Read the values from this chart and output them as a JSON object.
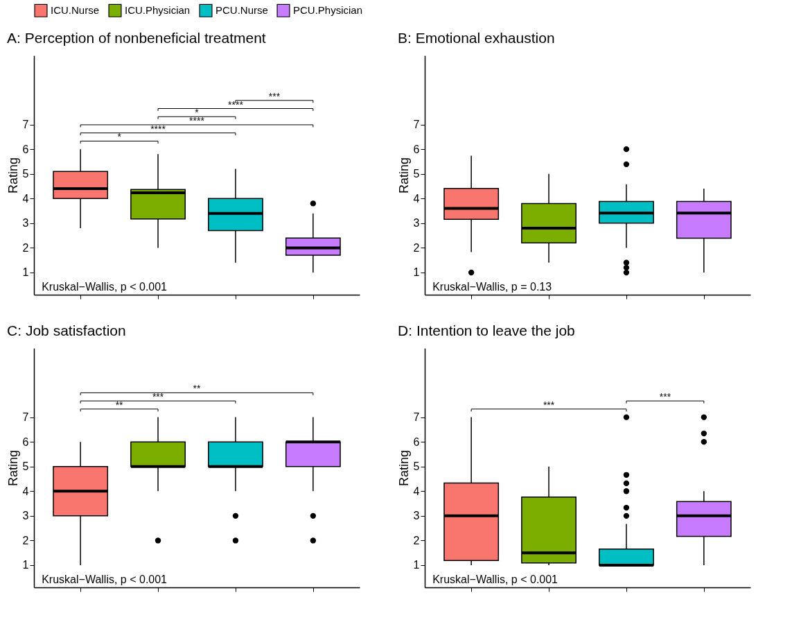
{
  "chart_data": [
    {
      "type": "box",
      "title": "A: Perception of nonbeneficial treatment",
      "ylabel": "Rating",
      "categories": [
        null,
        null,
        null,
        null
      ],
      "ylim": [
        0.1,
        9.8
      ],
      "yticks": [
        1,
        2,
        3,
        4,
        5,
        6,
        7
      ],
      "tick_labels": "y",
      "legend": "top",
      "series": [
        {
          "name": "ICU.Nurse",
          "color": "#f8766d",
          "boxes": [
            {
              "low": 2.8,
              "q1": 4.0,
              "median": 4.4,
              "q3": 5.1,
              "high": 6.0
            },
            null,
            null,
            null
          ]
        },
        {
          "name": "ICU.Physician",
          "color": "#7cae00",
          "boxes": [
            null,
            {
              "low": 2.0,
              "q1": 3.17,
              "median": 4.23,
              "q3": 4.37,
              "high": 5.8
            },
            null,
            null
          ]
        },
        {
          "name": "PCU.Nurse",
          "color": "#00bfc4",
          "boxes": [
            null,
            null,
            {
              "low": 1.4,
              "q1": 2.7,
              "median": 3.4,
              "q3": 4.0,
              "high": 5.2
            },
            null
          ]
        },
        {
          "name": "PCU.Physician",
          "color": "#c77cff",
          "boxes": [
            null,
            null,
            null,
            {
              "low": 1.0,
              "q1": 1.7,
              "median": 2.0,
              "q3": 2.4,
              "high": 3.4,
              "outliers": [
                3.8
              ]
            }
          ]
        }
      ],
      "annotations": [
        "*",
        "****",
        "****",
        "*",
        "****",
        "***",
        "Kruskal−Wallis, p < 0.001"
      ]
    },
    {
      "type": "box",
      "title": "B: Emotional exhaustion",
      "ylabel": "Rating",
      "categories": [
        null,
        null,
        null,
        null
      ],
      "ylim": [
        0.1,
        9.8
      ],
      "yticks": [
        1,
        2,
        3,
        4,
        5,
        6,
        7
      ],
      "tick_labels": "y",
      "legend": "top",
      "series": [
        {
          "name": "ICU.Nurse",
          "color": "#f8766d",
          "boxes": [
            {
              "low": 1.83,
              "q1": 3.16,
              "median": 3.6,
              "q3": 4.41,
              "high": 5.74,
              "outliers": [
                1.0
              ]
            },
            null,
            null,
            null
          ]
        },
        {
          "name": "ICU.Physician",
          "color": "#7cae00",
          "boxes": [
            null,
            {
              "low": 1.4,
              "q1": 2.2,
              "median": 2.8,
              "q3": 3.8,
              "high": 5.0
            },
            null,
            null
          ]
        },
        {
          "name": "PCU.Nurse",
          "color": "#00bfc4",
          "boxes": [
            null,
            null,
            {
              "low": 2.0,
              "q1": 3.0,
              "median": 3.41,
              "q3": 3.88,
              "high": 4.58,
              "outliers": [
                6.0,
                5.39,
                1.4,
                1.2,
                1.0
              ]
            },
            null
          ]
        },
        {
          "name": "PCU.Physician",
          "color": "#c77cff",
          "boxes": [
            null,
            null,
            null,
            {
              "low": 1.0,
              "q1": 2.39,
              "median": 3.41,
              "q3": 3.88,
              "high": 4.4
            }
          ]
        }
      ],
      "annotations": [
        "Kruskal−Wallis, p = 0.13"
      ]
    },
    {
      "type": "box",
      "title": "C: Job satisfaction",
      "ylabel": "Rating",
      "categories": [
        null,
        null,
        null,
        null
      ],
      "ylim": [
        0.1,
        9.8
      ],
      "yticks": [
        1,
        2,
        3,
        4,
        5,
        6,
        7
      ],
      "tick_labels": "y",
      "legend": "top",
      "series": [
        {
          "name": "ICU.Nurse",
          "color": "#f8766d",
          "boxes": [
            {
              "low": 1,
              "q1": 3,
              "median": 4,
              "q3": 5,
              "high": 6
            },
            null,
            null,
            null
          ]
        },
        {
          "name": "ICU.Physician",
          "color": "#7cae00",
          "boxes": [
            null,
            {
              "low": 4,
              "q1": 5,
              "median": 5,
              "q3": 6,
              "high": 7,
              "outliers": [
                2
              ]
            },
            null,
            null
          ]
        },
        {
          "name": "PCU.Nurse",
          "color": "#00bfc4",
          "boxes": [
            null,
            null,
            {
              "low": 4,
              "q1": 5,
              "median": 5,
              "q3": 6,
              "high": 7,
              "outliers": [
                3,
                2
              ]
            },
            null
          ]
        },
        {
          "name": "PCU.Physician",
          "color": "#c77cff",
          "boxes": [
            null,
            null,
            null,
            {
              "low": 4,
              "q1": 5,
              "median": 6,
              "q3": 6,
              "high": 7,
              "outliers": [
                3,
                2
              ]
            }
          ]
        }
      ],
      "annotations": [
        "**",
        "***",
        "**",
        "Kruskal−Wallis, p < 0.001"
      ]
    },
    {
      "type": "box",
      "title": "D: Intention to leave the job",
      "ylabel": "Rating",
      "categories": [
        null,
        null,
        null,
        null
      ],
      "ylim": [
        0.1,
        9.8
      ],
      "yticks": [
        1,
        2,
        3,
        4,
        5,
        6,
        7
      ],
      "tick_labels": "y",
      "legend": "top",
      "series": [
        {
          "name": "ICU.Nurse",
          "color": "#f8766d",
          "boxes": [
            {
              "low": 1.0,
              "q1": 1.19,
              "median": 3.0,
              "q3": 4.33,
              "high": 7.0
            },
            null,
            null,
            null
          ]
        },
        {
          "name": "ICU.Physician",
          "color": "#7cae00",
          "boxes": [
            null,
            {
              "low": 1.0,
              "q1": 1.09,
              "median": 1.5,
              "q3": 3.76,
              "high": 5.0
            },
            null,
            null
          ]
        },
        {
          "name": "PCU.Nurse",
          "color": "#00bfc4",
          "boxes": [
            null,
            null,
            {
              "low": 1.0,
              "q1": 1.0,
              "median": 1.0,
              "q3": 1.65,
              "high": 2.67,
              "outliers": [
                7.0,
                4.66,
                4.32,
                4.0,
                3.33,
                3.0
              ]
            },
            null
          ]
        },
        {
          "name": "PCU.Physician",
          "color": "#c77cff",
          "boxes": [
            null,
            null,
            null,
            {
              "low": 1.0,
              "q1": 2.17,
              "median": 3.0,
              "q3": 3.58,
              "high": 4.0,
              "outliers": [
                7.0,
                6.34,
                6.0
              ]
            }
          ]
        }
      ],
      "annotations": [
        "***",
        "***",
        "Kruskal−Wallis, p < 0.001"
      ]
    }
  ]
}
